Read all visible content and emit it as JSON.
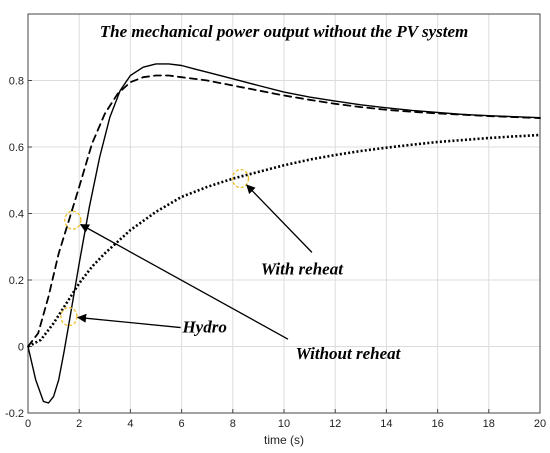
{
  "chart_data": {
    "type": "line",
    "title": "The mechanical power output without the PV system",
    "xlabel": "time (s)",
    "ylabel": "",
    "xlim": [
      0,
      20
    ],
    "ylim": [
      -0.2,
      1.0
    ],
    "grid": true,
    "x_ticks": [
      "0",
      "2",
      "4",
      "6",
      "8",
      "10",
      "12",
      "14",
      "16",
      "18",
      "20"
    ],
    "y_ticks": [
      "-0.2",
      "0",
      "0.2",
      "0.4",
      "0.6",
      "0.8"
    ],
    "series": [
      {
        "name": "Hydro",
        "style": "solid",
        "color": "#000000",
        "x": [
          0,
          0.3,
          0.6,
          0.8,
          1.0,
          1.2,
          1.4,
          1.6,
          1.8,
          2.0,
          2.4,
          2.8,
          3.2,
          3.6,
          4.0,
          4.5,
          5.0,
          5.5,
          6.0,
          6.5,
          7.0,
          8.0,
          9.0,
          10.0,
          11.0,
          12.0,
          13.0,
          14.0,
          15.0,
          16.0,
          17.0,
          18.0,
          19.0,
          20.0
        ],
        "y": [
          0,
          -0.1,
          -0.165,
          -0.17,
          -0.15,
          -0.1,
          -0.02,
          0.07,
          0.16,
          0.25,
          0.42,
          0.57,
          0.69,
          0.77,
          0.815,
          0.84,
          0.85,
          0.85,
          0.845,
          0.835,
          0.825,
          0.805,
          0.785,
          0.765,
          0.75,
          0.738,
          0.727,
          0.718,
          0.71,
          0.704,
          0.698,
          0.694,
          0.691,
          0.688
        ]
      },
      {
        "name": "Without reheat",
        "style": "dashed",
        "color": "#000000",
        "x": [
          0,
          0.4,
          0.8,
          1.2,
          1.6,
          2.0,
          2.5,
          3.0,
          3.5,
          4.0,
          4.5,
          5.0,
          5.5,
          6.0,
          7.0,
          8.0,
          9.0,
          10.0,
          11.0,
          12.0,
          13.0,
          14.0,
          15.0,
          16.0,
          17.0,
          18.0,
          19.0,
          20.0
        ],
        "y": [
          0,
          0.04,
          0.15,
          0.28,
          0.38,
          0.48,
          0.61,
          0.7,
          0.76,
          0.795,
          0.81,
          0.815,
          0.815,
          0.81,
          0.8,
          0.785,
          0.77,
          0.755,
          0.742,
          0.73,
          0.72,
          0.712,
          0.706,
          0.701,
          0.697,
          0.693,
          0.69,
          0.687
        ]
      },
      {
        "name": "With reheat",
        "style": "dotted",
        "color": "#000000",
        "x": [
          0,
          0.5,
          1.0,
          1.5,
          2.0,
          2.5,
          3.0,
          4.0,
          5.0,
          6.0,
          7.0,
          8.0,
          9.0,
          10.0,
          11.0,
          12.0,
          13.0,
          14.0,
          15.0,
          16.0,
          17.0,
          18.0,
          19.0,
          20.0
        ],
        "y": [
          0,
          0.02,
          0.07,
          0.13,
          0.19,
          0.24,
          0.28,
          0.35,
          0.405,
          0.45,
          0.48,
          0.505,
          0.525,
          0.545,
          0.562,
          0.576,
          0.588,
          0.598,
          0.607,
          0.615,
          0.621,
          0.627,
          0.632,
          0.636
        ]
      }
    ],
    "annotations": [
      {
        "text": "With reheat",
        "text_x": 10.7,
        "text_y": 0.235,
        "target_x": 8.3,
        "target_y": 0.505,
        "marker_color": "#f0c030"
      },
      {
        "text": "Hydro",
        "text_x": 6.9,
        "text_y": 0.06,
        "target_x": 1.6,
        "target_y": 0.09,
        "marker_color": "#f0c030"
      },
      {
        "text": "Without reheat",
        "text_x": 12.5,
        "text_y": -0.02,
        "target_x": 1.75,
        "target_y": 0.38,
        "marker_color": "#f0c030"
      }
    ]
  }
}
